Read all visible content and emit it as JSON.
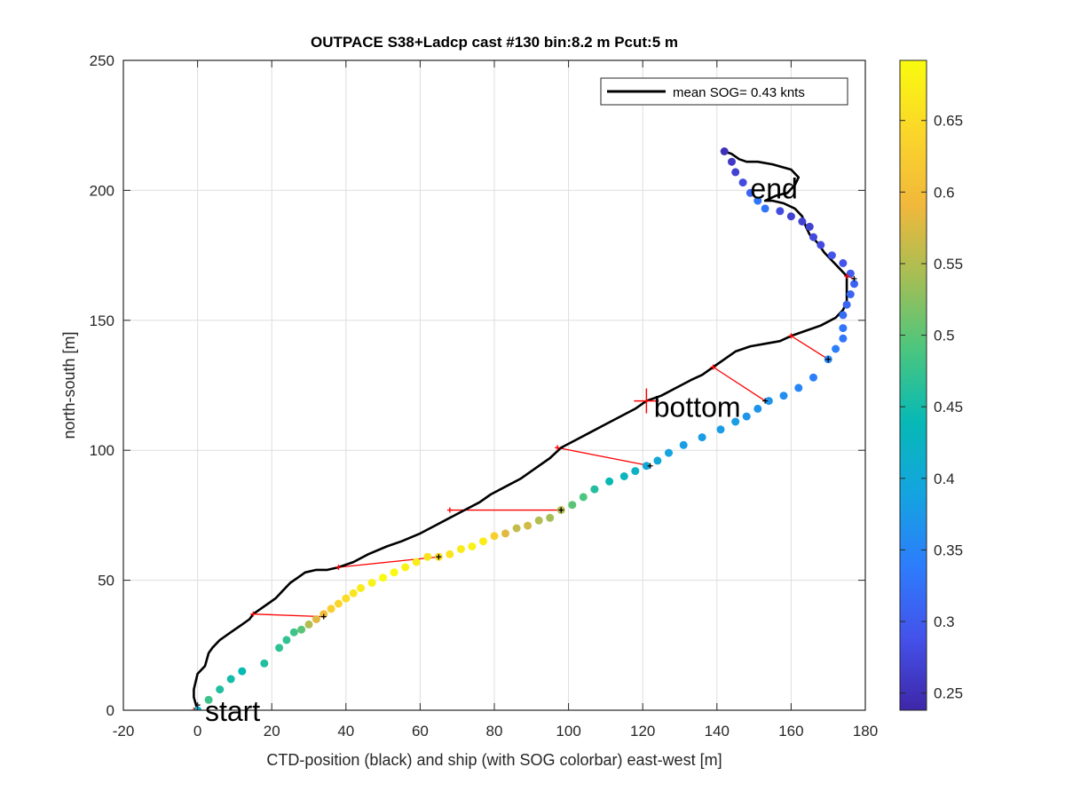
{
  "chart_data": {
    "type": "scatter",
    "title": "OUTPACE S38+Ladcp cast #130 bin:8.2 m  Pcut:5 m",
    "xlabel": "CTD-position (black) and ship (with SOG colorbar) east-west [m]",
    "ylabel": "north-south [m]",
    "xlim": [
      -20,
      180
    ],
    "ylim": [
      0,
      250
    ],
    "xticks": [
      -20,
      0,
      20,
      40,
      60,
      80,
      100,
      120,
      140,
      160,
      180
    ],
    "yticks": [
      0,
      50,
      100,
      150,
      200,
      250
    ],
    "grid": true,
    "legend": {
      "label": "mean SOG=  0.43 knts",
      "position": "top-right"
    },
    "colorbar": {
      "range": [
        0.238,
        0.692
      ],
      "ticks": [
        0.25,
        0.3,
        0.35,
        0.4,
        0.45,
        0.5,
        0.55,
        0.6,
        0.65
      ],
      "colormap": [
        "#3e26a8",
        "#4452ea",
        "#2d7dfc",
        "#14a4e0",
        "#07b9b5",
        "#4bc67e",
        "#a5be55",
        "#f1b83b",
        "#fbd62a",
        "#f9fb0e"
      ]
    },
    "annotations": [
      {
        "text": "start",
        "x": 2,
        "y": 0
      },
      {
        "text": "bottom",
        "x": 123,
        "y": 117
      },
      {
        "text": "end",
        "x": 149,
        "y": 201
      }
    ],
    "bottom_marker": {
      "x": 121,
      "y": 119
    },
    "ctd_track": [
      [
        0,
        0
      ],
      [
        -1,
        5
      ],
      [
        -1,
        8
      ],
      [
        0,
        14
      ],
      [
        2,
        17
      ],
      [
        3,
        22
      ],
      [
        4,
        24
      ],
      [
        6,
        27
      ],
      [
        8,
        29
      ],
      [
        10,
        31
      ],
      [
        12,
        33
      ],
      [
        14,
        35
      ],
      [
        15,
        37
      ],
      [
        17,
        39
      ],
      [
        19,
        41
      ],
      [
        21,
        43
      ],
      [
        23,
        46
      ],
      [
        25,
        49
      ],
      [
        27,
        51
      ],
      [
        29,
        53
      ],
      [
        32,
        54
      ],
      [
        35,
        54
      ],
      [
        38,
        55
      ],
      [
        42,
        57
      ],
      [
        46,
        60
      ],
      [
        51,
        63
      ],
      [
        55,
        65
      ],
      [
        60,
        68
      ],
      [
        64,
        71
      ],
      [
        68,
        74
      ],
      [
        72,
        77
      ],
      [
        76,
        80
      ],
      [
        79,
        83
      ],
      [
        83,
        86
      ],
      [
        87,
        89
      ],
      [
        91,
        93
      ],
      [
        95,
        97
      ],
      [
        98,
        101
      ],
      [
        102,
        104
      ],
      [
        106,
        107
      ],
      [
        110,
        110
      ],
      [
        114,
        113
      ],
      [
        118,
        116
      ],
      [
        121,
        119
      ],
      [
        125,
        121
      ],
      [
        129,
        124
      ],
      [
        133,
        127
      ],
      [
        136,
        129
      ],
      [
        139,
        132
      ],
      [
        142,
        135
      ],
      [
        145,
        138
      ],
      [
        149,
        140
      ],
      [
        153,
        141
      ],
      [
        157,
        142
      ],
      [
        160,
        144
      ],
      [
        164,
        146
      ],
      [
        168,
        148
      ],
      [
        172,
        151
      ],
      [
        174,
        154
      ],
      [
        175,
        157
      ],
      [
        175,
        161
      ],
      [
        175,
        164
      ],
      [
        175,
        167
      ],
      [
        173,
        170
      ],
      [
        171,
        173
      ],
      [
        169,
        176
      ],
      [
        167,
        180
      ],
      [
        165,
        183
      ],
      [
        164,
        186
      ],
      [
        163,
        190
      ],
      [
        161,
        193
      ],
      [
        158,
        195
      ],
      [
        155,
        196
      ],
      [
        153,
        196
      ],
      [
        156,
        198
      ],
      [
        159,
        199
      ],
      [
        161,
        202
      ],
      [
        162,
        205
      ],
      [
        160,
        208
      ],
      [
        155,
        210
      ],
      [
        151,
        211
      ],
      [
        148,
        211
      ],
      [
        146,
        212
      ],
      [
        144,
        214
      ],
      [
        142,
        215
      ]
    ],
    "ship_points": [
      [
        0,
        0,
        0.42
      ],
      [
        3,
        4,
        0.48
      ],
      [
        6,
        8,
        0.46
      ],
      [
        9,
        12,
        0.45
      ],
      [
        12,
        15,
        0.44
      ],
      [
        18,
        18,
        0.46
      ],
      [
        22,
        24,
        0.47
      ],
      [
        24,
        27,
        0.47
      ],
      [
        26,
        30,
        0.48
      ],
      [
        28,
        31,
        0.5
      ],
      [
        30,
        33,
        0.55
      ],
      [
        32,
        35,
        0.58
      ],
      [
        34,
        37,
        0.6
      ],
      [
        36,
        39,
        0.63
      ],
      [
        38,
        41,
        0.64
      ],
      [
        40,
        43,
        0.65
      ],
      [
        42,
        45,
        0.66
      ],
      [
        44,
        47,
        0.67
      ],
      [
        47,
        49,
        0.68
      ],
      [
        50,
        51,
        0.69
      ],
      [
        53,
        53,
        0.69
      ],
      [
        56,
        55,
        0.68
      ],
      [
        59,
        57,
        0.67
      ],
      [
        62,
        59,
        0.66
      ],
      [
        65,
        59,
        0.65
      ],
      [
        68,
        60,
        0.66
      ],
      [
        71,
        62,
        0.67
      ],
      [
        74,
        63,
        0.68
      ],
      [
        77,
        65,
        0.67
      ],
      [
        80,
        67,
        0.63
      ],
      [
        83,
        68,
        0.58
      ],
      [
        86,
        70,
        0.56
      ],
      [
        89,
        71,
        0.57
      ],
      [
        92,
        73,
        0.55
      ],
      [
        95,
        74,
        0.54
      ],
      [
        98,
        77,
        0.55
      ],
      [
        101,
        79,
        0.5
      ],
      [
        104,
        82,
        0.49
      ],
      [
        107,
        85,
        0.46
      ],
      [
        111,
        88,
        0.44
      ],
      [
        115,
        90,
        0.43
      ],
      [
        118,
        92,
        0.42
      ],
      [
        121,
        94,
        0.4
      ],
      [
        124,
        96,
        0.4
      ],
      [
        127,
        99,
        0.39
      ],
      [
        131,
        102,
        0.38
      ],
      [
        136,
        105,
        0.38
      ],
      [
        141,
        108,
        0.38
      ],
      [
        145,
        111,
        0.38
      ],
      [
        148,
        113,
        0.37
      ],
      [
        151,
        116,
        0.37
      ],
      [
        154,
        119,
        0.37
      ],
      [
        158,
        121,
        0.36
      ],
      [
        162,
        124,
        0.35
      ],
      [
        166,
        128,
        0.34
      ],
      [
        170,
        135,
        0.35
      ],
      [
        172,
        139,
        0.34
      ],
      [
        174,
        143,
        0.33
      ],
      [
        174,
        147,
        0.33
      ],
      [
        174,
        152,
        0.32
      ],
      [
        175,
        156,
        0.31
      ],
      [
        176,
        160,
        0.31
      ],
      [
        177,
        164,
        0.31
      ],
      [
        176,
        168,
        0.3
      ],
      [
        174,
        172,
        0.29
      ],
      [
        171,
        175,
        0.29
      ],
      [
        168,
        179,
        0.28
      ],
      [
        166,
        182,
        0.28
      ],
      [
        165,
        186,
        0.27
      ],
      [
        163,
        188,
        0.27
      ],
      [
        160,
        190,
        0.27
      ],
      [
        157,
        192,
        0.28
      ],
      [
        153,
        193,
        0.33
      ],
      [
        151,
        196,
        0.33
      ],
      [
        149,
        199,
        0.31
      ],
      [
        147,
        203,
        0.28
      ],
      [
        145,
        207,
        0.27
      ],
      [
        144,
        211,
        0.26
      ],
      [
        142,
        215,
        0.25
      ]
    ],
    "connections": [
      [
        [
          -1,
          0
        ],
        [
          0,
          2
        ]
      ],
      [
        [
          15,
          37
        ],
        [
          34,
          36
        ]
      ],
      [
        [
          38,
          55
        ],
        [
          65,
          59
        ]
      ],
      [
        [
          68,
          77
        ],
        [
          98,
          77
        ]
      ],
      [
        [
          97,
          101
        ],
        [
          122,
          94
        ]
      ],
      [
        [
          139,
          132
        ],
        [
          153,
          119
        ]
      ],
      [
        [
          160,
          144
        ],
        [
          170,
          135
        ]
      ],
      [
        [
          175,
          167
        ],
        [
          177,
          166
        ]
      ]
    ]
  }
}
